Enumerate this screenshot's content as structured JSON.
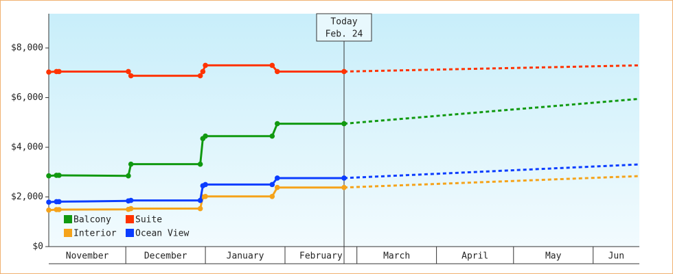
{
  "chart_data": {
    "type": "line",
    "xlim": [
      0,
      230
    ],
    "ylim": [
      0,
      9380
    ],
    "yticks": [
      {
        "value": 0,
        "label": "$0"
      },
      {
        "value": 2000,
        "label": "$2,000"
      },
      {
        "value": 4000,
        "label": "$4,000"
      },
      {
        "value": 6000,
        "label": "$6,000"
      },
      {
        "value": 8000,
        "label": "$8,000"
      }
    ],
    "xticks": [
      {
        "value": 0,
        "label": "November"
      },
      {
        "value": 30,
        "label": "December"
      },
      {
        "value": 61,
        "label": "January"
      },
      {
        "value": 92,
        "label": "February"
      },
      {
        "value": 120,
        "label": "March"
      },
      {
        "value": 151,
        "label": "April"
      },
      {
        "value": 181,
        "label": "May"
      },
      {
        "value": 212,
        "label": "Jun"
      }
    ],
    "today": {
      "x": 115,
      "label": [
        "Today",
        "Feb. 24"
      ]
    },
    "legend": "lower left",
    "series": [
      {
        "name": "Balcony",
        "color": "#109910",
        "x": [
          0,
          3,
          4,
          31,
          32,
          59,
          60,
          61,
          87,
          89,
          115
        ],
        "values": [
          2850,
          2870,
          2870,
          2850,
          3320,
          3320,
          4350,
          4450,
          4450,
          4950,
          4950
        ],
        "forecast": {
          "x": [
            115,
            230
          ],
          "values": [
            4950,
            5950
          ]
        }
      },
      {
        "name": "Suite",
        "color": "#ff3300",
        "x": [
          0,
          3,
          4,
          31,
          32,
          59,
          60,
          61,
          87,
          89,
          115
        ],
        "values": [
          7030,
          7050,
          7050,
          7050,
          6880,
          6880,
          7050,
          7300,
          7300,
          7050,
          7050
        ],
        "forecast": {
          "x": [
            115,
            230
          ],
          "values": [
            7050,
            7300
          ]
        }
      },
      {
        "name": "Interior",
        "color": "#f5a31a",
        "x": [
          0,
          3,
          4,
          31,
          32,
          59,
          60,
          61,
          87,
          89,
          115
        ],
        "values": [
          1470,
          1490,
          1490,
          1500,
          1530,
          1530,
          2000,
          2020,
          2020,
          2380,
          2380
        ],
        "forecast": {
          "x": [
            115,
            230
          ],
          "values": [
            2380,
            2840
          ]
        }
      },
      {
        "name": "Ocean View",
        "color": "#0a3cff",
        "x": [
          0,
          3,
          4,
          31,
          32,
          59,
          60,
          61,
          87,
          89,
          115
        ],
        "values": [
          1790,
          1810,
          1810,
          1840,
          1860,
          1860,
          2450,
          2500,
          2500,
          2760,
          2760
        ],
        "forecast": {
          "x": [
            115,
            230
          ],
          "values": [
            2760,
            3310
          ]
        }
      }
    ]
  }
}
